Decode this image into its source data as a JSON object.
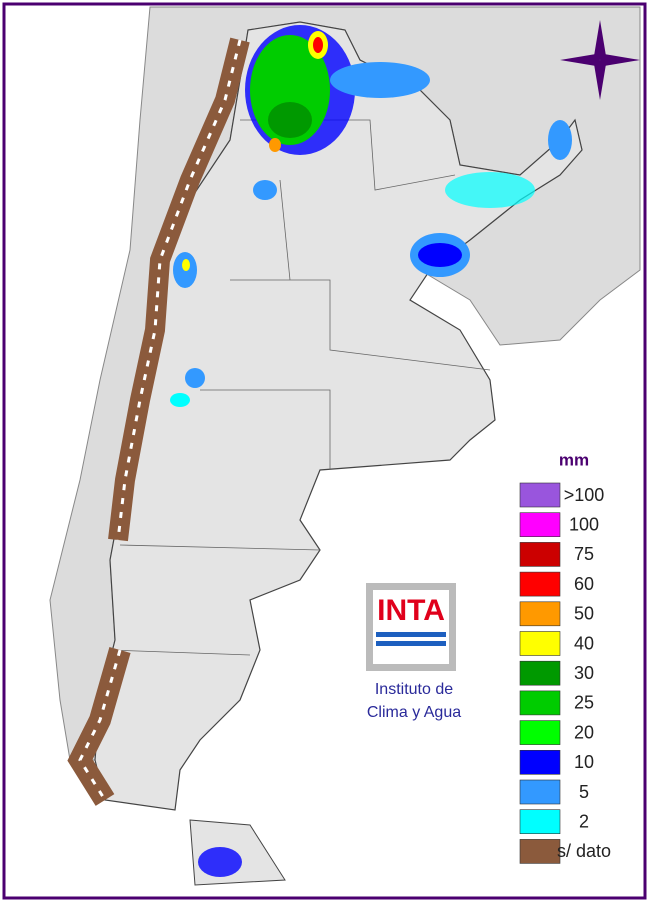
{
  "legend": {
    "unit": "mm",
    "items": [
      {
        "label": ">100",
        "color": "#9955dd"
      },
      {
        "label": "100",
        "color": "#ff00ff"
      },
      {
        "label": "75",
        "color": "#cc0000"
      },
      {
        "label": "60",
        "color": "#ff0000"
      },
      {
        "label": "50",
        "color": "#ff9900"
      },
      {
        "label": "40",
        "color": "#ffff00"
      },
      {
        "label": "30",
        "color": "#009900"
      },
      {
        "label": "25",
        "color": "#00cc00"
      },
      {
        "label": "20",
        "color": "#00ff00"
      },
      {
        "label": "10",
        "color": "#0000ff"
      },
      {
        "label": "5",
        "color": "#3399ff"
      },
      {
        "label": "2",
        "color": "#00ffff"
      },
      {
        "label": "s/ dato",
        "color": "#8b5a3c"
      }
    ]
  },
  "logo": {
    "text": "INTA",
    "caption": [
      "Instituto de",
      "Clima y Agua"
    ]
  }
}
